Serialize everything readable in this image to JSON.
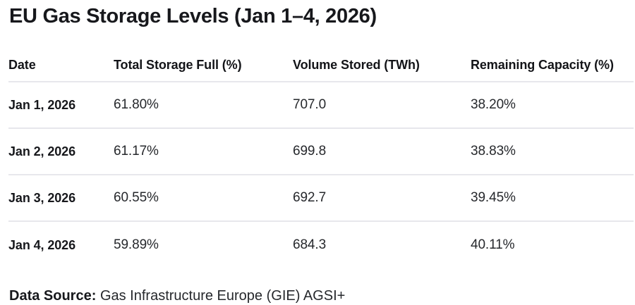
{
  "page": {
    "title": "EU Gas Storage Levels (Jan 1–4, 2026)",
    "source_label": "Data Source:",
    "source_value": "Gas Infrastructure Europe (GIE) AGSI+"
  },
  "colors": {
    "background": "#ffffff",
    "text_primary": "#17181c",
    "text_secondary": "#26282c",
    "divider": "#e7e7ec"
  },
  "chart_data": {
    "type": "table",
    "title": "EU Gas Storage Levels (Jan 1–4, 2026)",
    "columns": [
      "Date",
      "Total Storage Full (%)",
      "Volume Stored (TWh)",
      "Remaining Capacity (%)"
    ],
    "rows": [
      [
        "Jan 1, 2026",
        "61.80%",
        "707.0",
        "38.20%"
      ],
      [
        "Jan 2, 2026",
        "61.17%",
        "699.8",
        "38.83%"
      ],
      [
        "Jan 3, 2026",
        "60.55%",
        "692.7",
        "39.45%"
      ],
      [
        "Jan 4, 2026",
        "59.89%",
        "684.3",
        "40.11%"
      ]
    ],
    "source": "Gas Infrastructure Europe (GIE) AGSI+",
    "layout": "header row + 4 data rows, light gray horizontal dividers, no vertical rules"
  }
}
